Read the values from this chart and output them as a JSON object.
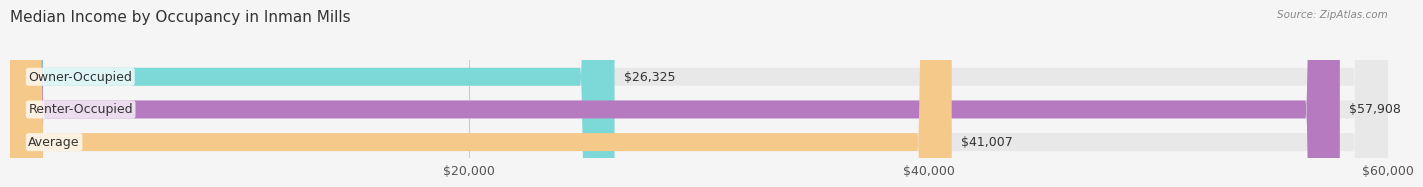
{
  "title": "Median Income by Occupancy in Inman Mills",
  "source": "Source: ZipAtlas.com",
  "categories": [
    "Owner-Occupied",
    "Renter-Occupied",
    "Average"
  ],
  "values": [
    26325,
    57908,
    41007
  ],
  "bar_colors": [
    "#7dd8d8",
    "#b57abf",
    "#f5c98a"
  ],
  "value_labels": [
    "$26,325",
    "$57,908",
    "$41,007"
  ],
  "xlim": [
    0,
    60000
  ],
  "xticks": [
    20000,
    40000,
    60000
  ],
  "xticklabels": [
    "$20,000",
    "$40,000",
    "$60,000"
  ],
  "background_color": "#f5f5f5",
  "bar_background_color": "#e8e8e8",
  "title_fontsize": 11,
  "label_fontsize": 9,
  "value_fontsize": 9,
  "tick_fontsize": 9,
  "bar_height": 0.55
}
